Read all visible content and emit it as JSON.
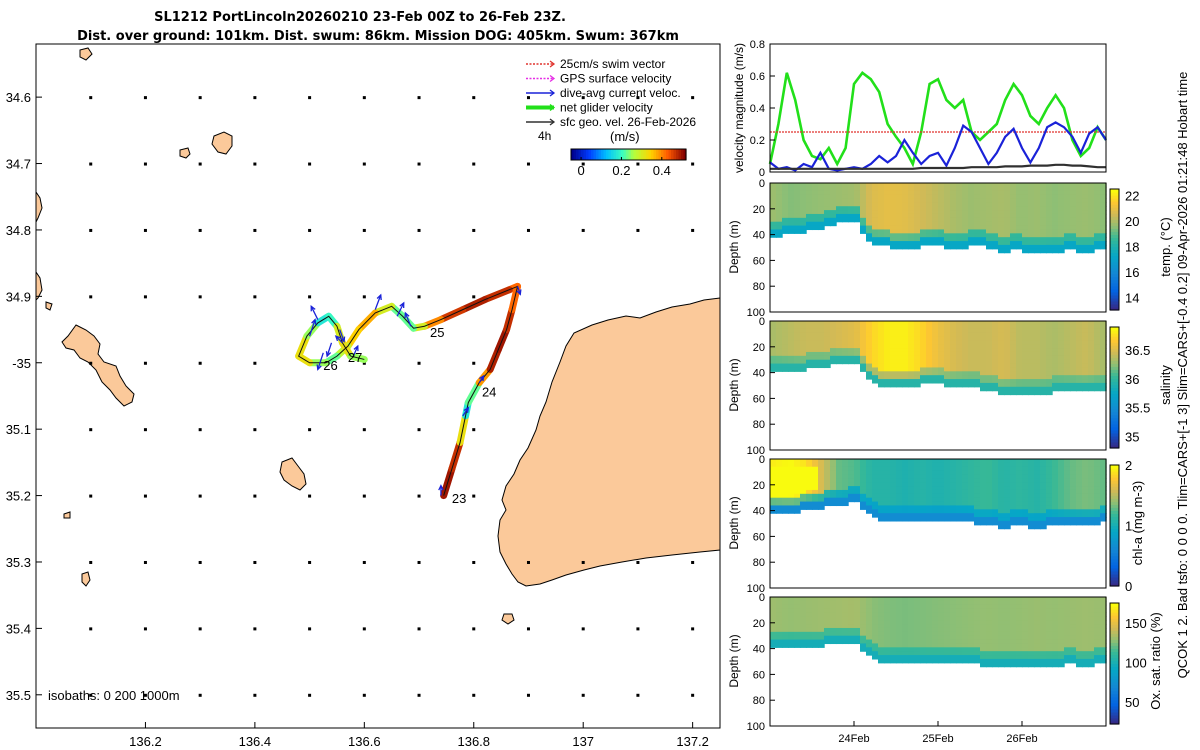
{
  "figure": {
    "title_line1": "SL1212 PortLincoln20260210 23-Feb 00Z to 26-Feb 23Z.",
    "title_line2": "Dist. over ground: 101km. Dist. swum: 86km. Mission DOG: 405km. Swum: 367km",
    "side_text": "QCOK 1  2. Bad tsfo: 0  0  0  0. Tlim=CARS+[-1 3] Slim=CARS+[-0.4 0.2] 09-Apr-2026 01:21:48 Hobart time"
  },
  "colors": {
    "land": "#fbc99a",
    "green": "#22e01a",
    "blue": "#1a22d8",
    "black": "#303030",
    "red": "#e0332d",
    "magenta": "#e62ee6"
  },
  "map": {
    "xlim": [
      136.0,
      137.25
    ],
    "ylim": [
      35.55,
      34.52
    ],
    "x_ticks": [
      136.2,
      136.4,
      136.6,
      136.8,
      137,
      137.2
    ],
    "x_tick_labels": [
      "136.2",
      "136.4",
      "136.6",
      "136.8",
      "137",
      "137.2"
    ],
    "y_ticks": [
      34.6,
      34.7,
      34.8,
      34.9,
      35.0,
      35.1,
      35.2,
      35.3,
      35.4,
      35.5
    ],
    "y_tick_labels": [
      "34.6",
      "34.7",
      "34.8",
      "34.9",
      "-35",
      "35.1",
      "35.2",
      "35.3",
      "35.4",
      "35.5"
    ],
    "isobaths_label": "isobaths: 0   200  1000m",
    "legend": {
      "items": [
        {
          "label": "25cm/s swim vector",
          "color": "#e0332d",
          "style": "dotted"
        },
        {
          "label": "GPS surface velocity",
          "color": "#e62ee6",
          "style": "dotted"
        },
        {
          "label": "dive-avg current veloc.",
          "color": "#1a22d8",
          "style": "solid"
        },
        {
          "label": "net glider velocity",
          "color": "#22e01a",
          "style": "thick"
        },
        {
          "label": "sfc geo. vel. 26-Feb-2026",
          "color": "#303030",
          "style": "solid"
        }
      ],
      "note": "4h"
    },
    "colorbar": {
      "label": "(m/s)",
      "ticks": [
        0,
        0.2,
        0.4
      ],
      "tick_labels": [
        "0",
        "0.2",
        "0.4"
      ],
      "range": [
        -0.05,
        0.52
      ]
    },
    "track": [
      [
        136.745,
        35.2,
        0.5
      ],
      [
        136.76,
        35.16,
        0.5
      ],
      [
        136.775,
        35.12,
        0.45
      ],
      [
        136.785,
        35.08,
        0.2
      ],
      [
        136.79,
        35.06,
        0.15
      ],
      [
        136.81,
        35.03,
        0.3
      ],
      [
        136.83,
        35.01,
        0.48
      ],
      [
        136.845,
        34.98,
        0.5
      ],
      [
        136.86,
        34.95,
        0.5
      ],
      [
        136.87,
        34.92,
        0.45
      ],
      [
        136.88,
        34.885,
        0.4
      ],
      [
        136.865,
        34.89,
        0.45
      ],
      [
        136.82,
        34.905,
        0.5
      ],
      [
        136.78,
        34.92,
        0.48
      ],
      [
        136.74,
        34.935,
        0.45
      ],
      [
        136.71,
        34.945,
        0.35
      ],
      [
        136.69,
        34.948,
        0.25
      ],
      [
        136.67,
        34.93,
        0.2
      ],
      [
        136.65,
        34.915,
        0.25
      ],
      [
        136.62,
        34.925,
        0.35
      ],
      [
        136.59,
        34.95,
        0.4
      ],
      [
        136.57,
        34.975,
        0.3
      ],
      [
        136.55,
        34.99,
        0.25
      ],
      [
        136.53,
        35.0,
        0.2
      ],
      [
        136.5,
        35.0,
        0.3
      ],
      [
        136.48,
        34.99,
        0.35
      ],
      [
        136.495,
        34.96,
        0.3
      ],
      [
        136.515,
        34.94,
        0.2
      ],
      [
        136.535,
        34.93,
        0.15
      ],
      [
        136.55,
        34.945,
        0.25
      ],
      [
        136.56,
        34.97,
        0.35
      ],
      [
        136.575,
        34.99,
        0.3
      ],
      [
        136.6,
        34.995,
        0.2
      ]
    ],
    "day_labels": [
      {
        "text": "23",
        "lon": 136.76,
        "lat": 35.205
      },
      {
        "text": "24",
        "lon": 136.815,
        "lat": 35.045
      },
      {
        "text": "25",
        "lon": 136.72,
        "lat": 34.955
      },
      {
        "text": "26",
        "lon": 136.525,
        "lat": 35.005
      },
      {
        "text": "27",
        "lon": 136.57,
        "lat": 34.993
      }
    ],
    "arrows": [
      [
        136.74,
        35.2,
        0,
        0.015
      ],
      [
        136.78,
        35.08,
        0.01,
        0.012
      ],
      [
        136.81,
        35.03,
        0.008,
        0.01
      ],
      [
        136.685,
        34.945,
        -0.01,
        0.02
      ],
      [
        136.66,
        34.93,
        0.012,
        0.02
      ],
      [
        136.62,
        34.92,
        0.01,
        0.022
      ],
      [
        136.555,
        34.95,
        0.008,
        -0.018
      ],
      [
        136.54,
        34.97,
        -0.008,
        -0.02
      ],
      [
        136.525,
        34.985,
        -0.01,
        -0.025
      ],
      [
        136.5,
        34.96,
        0.01,
        0.025
      ],
      [
        136.515,
        34.935,
        -0.012,
        0.02
      ],
      [
        136.56,
        34.97,
        -0.012,
        0.01
      ],
      [
        136.58,
        34.99,
        0.008,
        0.015
      ],
      [
        136.88,
        34.885,
        0.005,
        -0.012
      ]
    ]
  },
  "chart_data": [
    {
      "type": "line",
      "title": "",
      "xlabel": "",
      "ylabel": "velocity magnitude (m/s)",
      "ylim": [
        0,
        0.8
      ],
      "y_ticks": [
        0,
        0.2,
        0.4,
        0.6,
        0.8
      ],
      "x": [
        0,
        0.1,
        0.2,
        0.3,
        0.4,
        0.5,
        0.6,
        0.7,
        0.8,
        0.9,
        1.0,
        1.1,
        1.2,
        1.3,
        1.4,
        1.5,
        1.6,
        1.7,
        1.8,
        1.9,
        2.0,
        2.1,
        2.2,
        2.3,
        2.4,
        2.5,
        2.6,
        2.7,
        2.8,
        2.9,
        3.0,
        3.1,
        3.2,
        3.3,
        3.4,
        3.5,
        3.6,
        3.7,
        3.8,
        3.9,
        4.0
      ],
      "series": [
        {
          "name": "net glider velocity",
          "color": "#22e01a",
          "values": [
            0.05,
            0.3,
            0.62,
            0.45,
            0.2,
            0.1,
            0.08,
            0.15,
            0.05,
            0.15,
            0.55,
            0.62,
            0.58,
            0.5,
            0.3,
            0.22,
            0.15,
            0.05,
            0.25,
            0.55,
            0.58,
            0.45,
            0.4,
            0.45,
            0.25,
            0.2,
            0.25,
            0.3,
            0.45,
            0.55,
            0.48,
            0.35,
            0.3,
            0.4,
            0.48,
            0.4,
            0.2,
            0.1,
            0.15,
            0.28,
            0.2
          ]
        },
        {
          "name": "25cm/s swim vector",
          "color": "#e0332d",
          "values": [
            0.25,
            0.25,
            0.25,
            0.25,
            0.25,
            0.25,
            0.25,
            0.25,
            0.25,
            0.25,
            0.25,
            0.25,
            0.25,
            0.25,
            0.25,
            0.25,
            0.25,
            0.25,
            0.25,
            0.25,
            0.25,
            0.25,
            0.25,
            0.25,
            0.25,
            0.25,
            0.25,
            0.25,
            0.25,
            0.25,
            0.25,
            0.25,
            0.25,
            0.25,
            0.25,
            0.25,
            0.25,
            0.25,
            0.25,
            0.25,
            0.25
          ]
        },
        {
          "name": "dive-avg current veloc.",
          "color": "#1a22d8",
          "values": [
            0.06,
            0.02,
            0.03,
            0.01,
            0.05,
            0.03,
            0.12,
            0.02,
            0.01,
            0.02,
            0.03,
            0.02,
            0.05,
            0.1,
            0.06,
            0.1,
            0.2,
            0.12,
            0.05,
            0.1,
            0.12,
            0.04,
            0.15,
            0.29,
            0.25,
            0.15,
            0.05,
            0.12,
            0.22,
            0.27,
            0.15,
            0.06,
            0.15,
            0.28,
            0.31,
            0.28,
            0.22,
            0.12,
            0.24,
            0.28,
            0.2
          ]
        },
        {
          "name": "sfc geo. vel.",
          "color": "#303030",
          "values": [
            0.02,
            0.02,
            0.02,
            0.02,
            0.02,
            0.02,
            0.02,
            0.02,
            0.02,
            0.02,
            0.02,
            0.02,
            0.02,
            0.02,
            0.02,
            0.02,
            0.02,
            0.02,
            0.025,
            0.025,
            0.025,
            0.025,
            0.025,
            0.025,
            0.03,
            0.03,
            0.03,
            0.03,
            0.035,
            0.035,
            0.035,
            0.04,
            0.04,
            0.04,
            0.045,
            0.045,
            0.04,
            0.04,
            0.035,
            0.03,
            0.03
          ]
        }
      ]
    },
    {
      "type": "heatmap",
      "variable": "temperature",
      "xlabel": "",
      "ylabel": "Depth (m)",
      "colorbar_label": "temp. (°C)",
      "clim": [
        13,
        22.5
      ],
      "cbar_ticks": [
        14,
        16,
        18,
        20,
        22
      ],
      "y_ticks": [
        20,
        40,
        60,
        80,
        100
      ],
      "ylim": [
        0,
        100
      ],
      "profile_time": [
        0,
        0.2,
        0.4,
        0.6,
        0.8,
        1.0,
        1.2,
        1.4,
        1.6,
        1.8,
        2.0,
        2.2,
        2.4,
        2.6,
        2.8,
        3.0,
        3.2,
        3.4,
        3.6,
        3.8,
        4.0
      ],
      "mixed_layer_depth_m": [
        32,
        30,
        28,
        25,
        22,
        20,
        38,
        40,
        41,
        40,
        38,
        42,
        40,
        40,
        44,
        42,
        46,
        44,
        42,
        44,
        42
      ],
      "surface_value": [
        19.8,
        19.5,
        19.6,
        19.7,
        19.8,
        19.9,
        20.8,
        21.0,
        20.9,
        20.6,
        20.3,
        20.0,
        19.8,
        19.9,
        20.0,
        19.7,
        19.8,
        19.6,
        19.7,
        19.8,
        19.6
      ],
      "deep_value": 17.3
    },
    {
      "type": "heatmap",
      "variable": "salinity",
      "xlabel": "",
      "ylabel": "Depth (m)",
      "colorbar_label": "salinity",
      "clim": [
        34.8,
        36.9
      ],
      "cbar_ticks": [
        35,
        35.5,
        36,
        36.5
      ],
      "y_ticks": [
        20,
        40,
        60,
        80,
        100
      ],
      "ylim": [
        0,
        100
      ],
      "profile_time": [
        0,
        0.2,
        0.4,
        0.6,
        0.8,
        1.0,
        1.2,
        1.4,
        1.6,
        1.8,
        2.0,
        2.2,
        2.4,
        2.6,
        2.8,
        3.0,
        3.2,
        3.4,
        3.6,
        3.8,
        4.0
      ],
      "mixed_layer_depth_m": [
        30,
        30,
        28,
        26,
        24,
        22,
        38,
        42,
        42,
        40,
        38,
        42,
        42,
        44,
        48,
        46,
        48,
        46,
        44,
        46,
        44
      ],
      "surface_value": [
        36.35,
        36.4,
        36.45,
        36.45,
        36.5,
        36.55,
        36.75,
        36.85,
        36.85,
        36.75,
        36.6,
        36.5,
        36.45,
        36.45,
        36.5,
        36.4,
        36.4,
        36.35,
        36.4,
        36.45,
        36.35
      ],
      "deep_value": 35.95
    },
    {
      "type": "heatmap",
      "variable": "chl-a",
      "xlabel": "",
      "ylabel": "Depth (m)",
      "colorbar_label": "chl-a (mg m-3)",
      "clim": [
        0,
        2
      ],
      "cbar_ticks": [
        0,
        1,
        2
      ],
      "y_ticks": [
        20,
        40,
        60,
        80,
        100
      ],
      "ylim": [
        0,
        100
      ],
      "profile_time": [
        0,
        0.2,
        0.4,
        0.6,
        0.8,
        1.0,
        1.2,
        1.4,
        1.6,
        1.8,
        2.0,
        2.2,
        2.4,
        2.6,
        2.8,
        3.0,
        3.2,
        3.4,
        3.6,
        3.8,
        4.0
      ],
      "mixed_layer_depth_m": [
        33,
        32,
        30,
        28,
        26,
        24,
        35,
        40,
        40,
        40,
        38,
        40,
        40,
        42,
        44,
        42,
        44,
        42,
        40,
        42,
        40
      ],
      "surface_value": [
        1.95,
        2.0,
        1.9,
        1.6,
        1.3,
        1.25,
        1.1,
        1.1,
        1.05,
        1.1,
        1.05,
        1.1,
        1.15,
        1.2,
        1.1,
        1.15,
        1.1,
        1.2,
        1.3,
        1.35,
        1.3
      ],
      "deep_value": 0.65
    },
    {
      "type": "heatmap",
      "variable": "oxygen saturation",
      "xlabel": "",
      "ylabel": "Depth (m)",
      "colorbar_label": "Ox. sat. ratio (%)",
      "clim": [
        22,
        175
      ],
      "cbar_ticks": [
        50,
        100,
        150
      ],
      "y_ticks": [
        20,
        40,
        60,
        80,
        100
      ],
      "ylim": [
        0,
        100
      ],
      "x_tick_labels": [
        "24Feb",
        "25Feb",
        "26Feb"
      ],
      "profile_time": [
        0,
        0.2,
        0.4,
        0.6,
        0.8,
        1.0,
        1.2,
        1.4,
        1.6,
        1.8,
        2.0,
        2.2,
        2.4,
        2.6,
        2.8,
        3.0,
        3.2,
        3.4,
        3.6,
        3.8,
        4.0
      ],
      "mixed_layer_depth_m": [
        30,
        30,
        29,
        28,
        27,
        26,
        38,
        42,
        42,
        41,
        40,
        42,
        42,
        44,
        46,
        44,
        46,
        44,
        42,
        44,
        42
      ],
      "surface_value": [
        132,
        130,
        131,
        132,
        133,
        134,
        128,
        126,
        125,
        126,
        127,
        128,
        129,
        130,
        129,
        130,
        131,
        130,
        131,
        132,
        131
      ],
      "deep_value": 98
    }
  ]
}
